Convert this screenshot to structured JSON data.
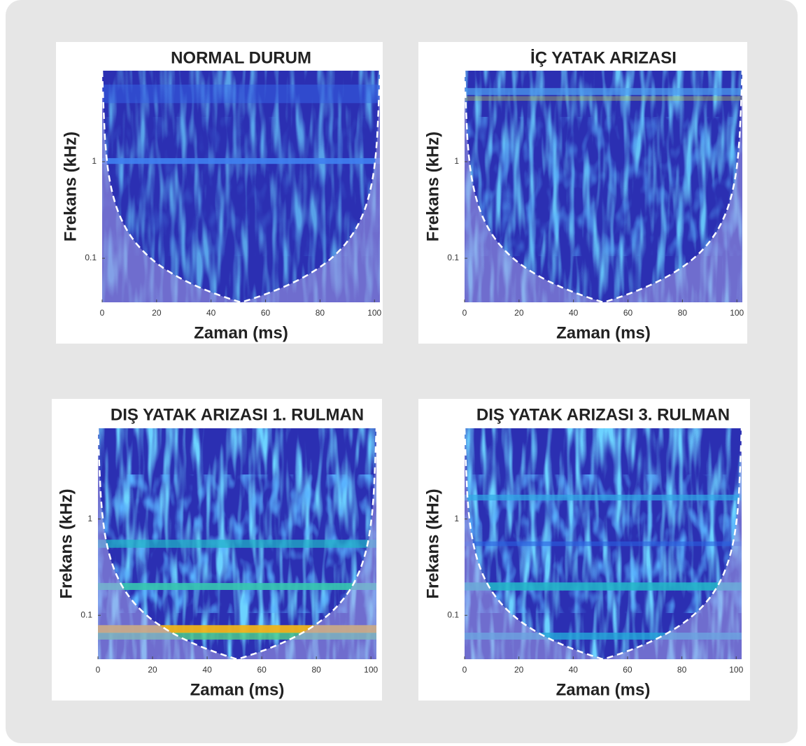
{
  "chart_data": [
    {
      "type": "scalogram",
      "title": "NORMAL DURUM",
      "xlabel": "Zaman (ms)",
      "ylabel": "Frekans (kHz)",
      "xlim": [
        0,
        102
      ],
      "ylim": [
        0.035,
        8.75
      ],
      "xticks": [
        0,
        20,
        40,
        60,
        80,
        100
      ],
      "yticks": [
        0.1,
        1
      ],
      "yscale": "log"
    },
    {
      "type": "scalogram",
      "title": "İÇ YATAK ARIZASI",
      "xlabel": "Zaman (ms)",
      "ylabel": "Frekans (kHz)",
      "xlim": [
        0,
        102
      ],
      "ylim": [
        0.035,
        8.75
      ],
      "xticks": [
        0,
        20,
        40,
        60,
        80,
        100
      ],
      "yticks": [
        0.1,
        1
      ],
      "yscale": "log"
    },
    {
      "type": "scalogram",
      "title": "DIŞ YATAK ARIZASI 1. RULMAN",
      "xlabel": "Zaman (ms)",
      "ylabel": "Frekans (kHz)",
      "xlim": [
        0,
        102
      ],
      "ylim": [
        0.035,
        8.75
      ],
      "xticks": [
        0,
        20,
        40,
        60,
        80,
        100
      ],
      "yticks": [
        0.1,
        1
      ],
      "yscale": "log"
    },
    {
      "type": "scalogram",
      "title": "DIŞ YATAK ARIZASI 3. RULMAN",
      "xlabel": "Zaman (ms)",
      "ylabel": "Frekans (kHz)",
      "xlim": [
        0,
        102
      ],
      "ylim": [
        0.035,
        8.75
      ],
      "xticks": [
        0,
        20,
        40,
        60,
        80,
        100
      ],
      "yticks": [
        0.1,
        1
      ],
      "yscale": "log"
    }
  ]
}
